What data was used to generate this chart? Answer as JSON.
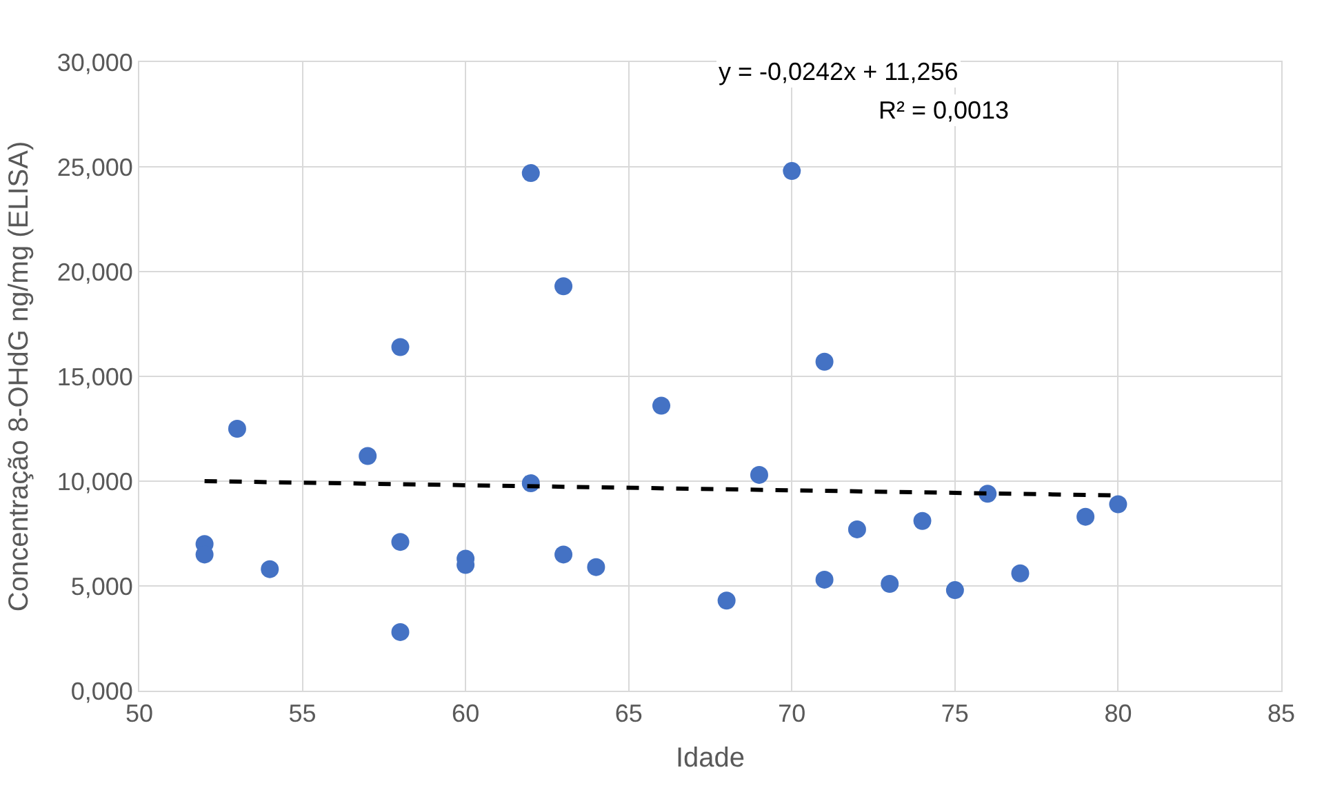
{
  "chart_data": {
    "type": "scatter",
    "xlabel": "Idade",
    "ylabel": "Concentração 8-OHdG ng/mg (ELISA)",
    "xlim": [
      50,
      85
    ],
    "xticks": [
      50,
      55,
      60,
      65,
      70,
      75,
      80,
      85
    ],
    "ylim": [
      0,
      30
    ],
    "yticks": [
      {
        "value": 0,
        "label": "0,000"
      },
      {
        "value": 5,
        "label": "5,000"
      },
      {
        "value": 10,
        "label": "10,000"
      },
      {
        "value": 15,
        "label": "15,000"
      },
      {
        "value": 20,
        "label": "20,000"
      },
      {
        "value": 25,
        "label": "25,000"
      },
      {
        "value": 30,
        "label": "30,000"
      }
    ],
    "grid": true,
    "marker": "circle",
    "series": [
      {
        "color": "#4472c4",
        "x": [
          52,
          52,
          53,
          54,
          57,
          58,
          58,
          58,
          60,
          60,
          62,
          62,
          63,
          63,
          64,
          66,
          68,
          69,
          70,
          71,
          71,
          72,
          73,
          74,
          75,
          76,
          77,
          79,
          80
        ],
        "values": [
          7.0,
          6.5,
          12.5,
          5.8,
          11.2,
          16.4,
          7.1,
          2.8,
          6.3,
          6.0,
          24.7,
          9.9,
          19.3,
          6.5,
          5.9,
          13.6,
          4.3,
          10.3,
          24.8,
          15.7,
          5.3,
          7.7,
          5.1,
          8.1,
          4.8,
          9.4,
          5.6,
          8.3,
          8.9
        ]
      },
      {
        "type": "line",
        "color": "#000000",
        "line_style": "dashed",
        "marker": "none",
        "x": [
          52,
          80
        ],
        "values": [
          10.0,
          9.32
        ]
      }
    ],
    "annotations": [
      "y = -0,0242x + 11,256",
      "R² = 0,0013"
    ]
  }
}
